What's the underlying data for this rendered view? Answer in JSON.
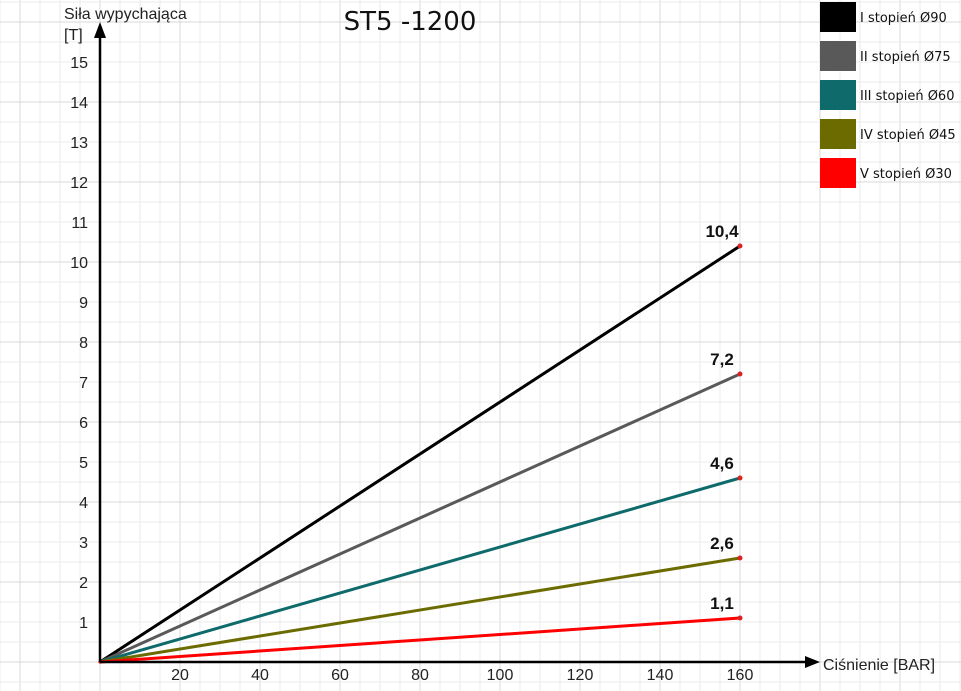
{
  "chart_data": {
    "type": "line",
    "title": "ST5 -1200",
    "ylabel_line1": "Siła wypychająca",
    "ylabel_line2": "[T]",
    "xlabel": "Ciśnienie [BAR]",
    "xlim": [
      0,
      160
    ],
    "ylim": [
      0,
      15
    ],
    "x_ticks": [
      20,
      40,
      60,
      80,
      100,
      120,
      140,
      160
    ],
    "y_ticks": [
      1,
      2,
      3,
      4,
      5,
      6,
      7,
      8,
      9,
      10,
      11,
      12,
      13,
      14,
      15
    ],
    "grid": true,
    "legend_position": "top-right",
    "series": [
      {
        "name": "I stopień Ø90",
        "color": "#000000",
        "x": [
          0,
          160
        ],
        "y": [
          0,
          10.4
        ],
        "end_label": "10,4"
      },
      {
        "name": "II stopień Ø75",
        "color": "#595959",
        "x": [
          0,
          160
        ],
        "y": [
          0,
          7.2
        ],
        "end_label": "7,2"
      },
      {
        "name": "III stopień Ø60",
        "color": "#0f6b6b",
        "x": [
          0,
          160
        ],
        "y": [
          0,
          4.6
        ],
        "end_label": "4,6"
      },
      {
        "name": "IV stopień Ø45",
        "color": "#6b6b00",
        "x": [
          0,
          160
        ],
        "y": [
          0,
          2.6
        ],
        "end_label": "2,6"
      },
      {
        "name": "V stopień Ø30",
        "color": "#ff0000",
        "x": [
          0,
          160
        ],
        "y": [
          0,
          1.1
        ],
        "end_label": "1,1"
      }
    ],
    "end_marker_color": "#dd2222"
  }
}
